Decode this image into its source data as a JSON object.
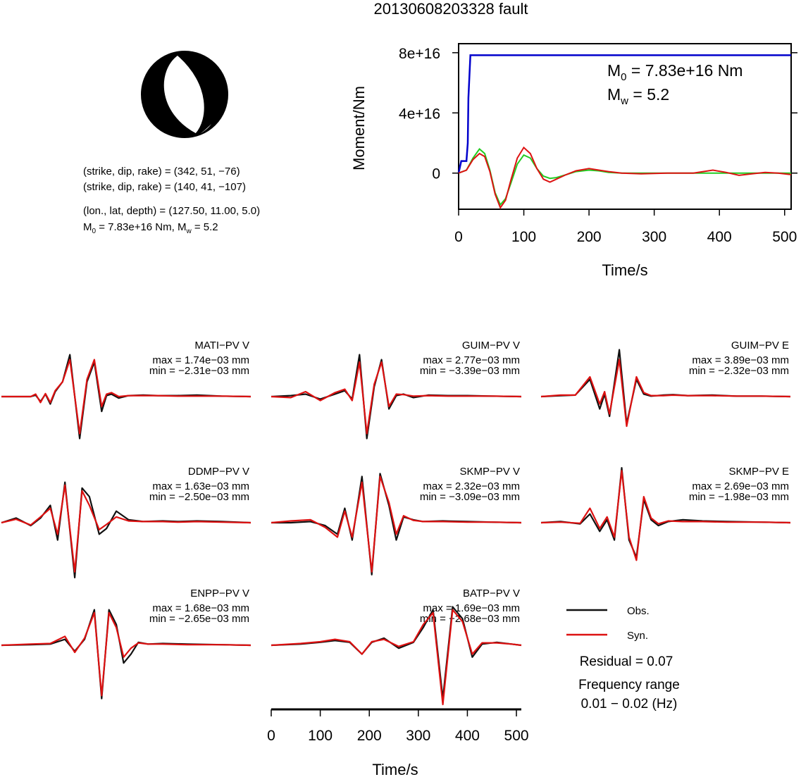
{
  "title": "20130608203328 fault",
  "mechanism": {
    "nodal_plane_1": "(strike, dip, rake) = (342, 51, −76)",
    "nodal_plane_2": "(strike, dip, rake) = (140, 41, −107)",
    "location": "(lon., lat, depth) = (127.50, 11.00, 5.0)",
    "moment_line": "M0 = 7.83e+16 Nm, Mw = 5.2",
    "m0_prefix": "M",
    "m0_sub": "0",
    "m0_rest": " = 7.83e+16 Nm, M",
    "mw_sub": "w",
    "mw_rest": " = 5.2"
  },
  "moment_panel": {
    "ylabel": "Moment/Nm",
    "xlabel": "Time/s",
    "m0_annotation": {
      "prefix": "M",
      "sub": "0",
      "rest": " = 7.83e+16 Nm"
    },
    "mw_annotation": {
      "prefix": "M",
      "sub": "w",
      "rest": " = 5.2"
    },
    "colors": {
      "moment": "#0000cc",
      "green": "#22cc22",
      "red": "#dd1111"
    }
  },
  "waveform_panel": {
    "xlabel": "Time/s",
    "colors": {
      "obs": "#111111",
      "syn": "#dd1111"
    }
  },
  "legend": {
    "obs_label": "Obs.",
    "syn_label": "Syn.",
    "residual": "Residual = 0.07",
    "freq_title": "Frequency range",
    "freq_value": "0.01 − 0.02 (Hz)"
  },
  "chart_data": [
    {
      "type": "line",
      "title": "",
      "xlabel": "Time/s",
      "ylabel": "Moment/Nm",
      "xlim": [
        0,
        510
      ],
      "ylim": [
        -2.4e+16,
        8.6e+16
      ],
      "xticks": [
        0,
        100,
        200,
        300,
        400,
        500
      ],
      "yticks": [
        0,
        4e+16,
        8e+16
      ],
      "ytick_labels": [
        "0",
        "4e+16",
        "8e+16"
      ],
      "series": [
        {
          "color": "#0000cc",
          "x": [
            0,
            4,
            8,
            12,
            14,
            15,
            18,
            510
          ],
          "y": [
            0,
            8000000000000000.0,
            8000000000000000.0,
            8000000000000000.0,
            2e+16,
            5e+16,
            7.83e+16,
            7.83e+16
          ]
        },
        {
          "color": "#22cc22",
          "x": [
            0,
            12,
            22,
            32,
            40,
            48,
            56,
            64,
            72,
            80,
            90,
            100,
            110,
            120,
            130,
            140,
            150,
            165,
            180,
            200,
            215,
            230,
            250,
            280,
            320,
            360,
            400,
            440,
            470,
            510
          ],
          "y": [
            0,
            2000000000000000.0,
            1e+16,
            1.6e+16,
            1.3e+16,
            2000000000000000.0,
            -1.3e+16,
            -2.1e+16,
            -1.7e+16,
            -7000000000000000.0,
            6000000000000000.0,
            1.2e+16,
            1e+16,
            3000000000000000.0,
            -2000000000000000.0,
            -3500000000000000.0,
            -3000000000000000.0,
            -1000000000000000.0,
            1000000000000000.0,
            2000000000000000.0,
            1500000000000000.0,
            500000000000000.0,
            0,
            0,
            0,
            0,
            0,
            0,
            0,
            0
          ]
        },
        {
          "color": "#dd1111",
          "x": [
            0,
            12,
            22,
            32,
            40,
            48,
            56,
            64,
            72,
            80,
            90,
            100,
            110,
            120,
            130,
            140,
            150,
            165,
            180,
            200,
            215,
            230,
            250,
            280,
            320,
            360,
            390,
            410,
            430,
            450,
            470,
            490,
            510
          ],
          "y": [
            0,
            2000000000000000.0,
            9000000000000000.0,
            1.3e+16,
            1.1e+16,
            1000000000000000.0,
            -1.4e+16,
            -2.3e+16,
            -1.8e+16,
            -5000000000000000.0,
            1e+16,
            1.7e+16,
            1.3e+16,
            3000000000000000.0,
            -4000000000000000.0,
            -6000000000000000.0,
            -4000000000000000.0,
            -1000000000000000.0,
            1500000000000000.0,
            3000000000000000.0,
            2000000000000000.0,
            1000000000000000.0,
            0,
            -500000000000000.0,
            0,
            0,
            2000000000000000.0,
            500000000000000.0,
            -1500000000000000.0,
            -500000000000000.0,
            500000000000000.0,
            0,
            -1000000000000000.0
          ]
        }
      ]
    },
    {
      "type": "line",
      "title": "",
      "xlabel": "Time/s",
      "xlim": [
        0,
        510
      ],
      "xticks": [
        0,
        100,
        200,
        300,
        400,
        500
      ],
      "ylim": [
        -1,
        1
      ],
      "panels": [
        {
          "station": "MATI−PV V",
          "max": "max = 1.74e−03 mm",
          "min": "min = −2.31e−03 mm",
          "obs": {
            "x": [
              0,
              60,
              70,
              80,
              90,
              100,
              110,
              125,
              140,
              160,
              175,
              190,
              205,
              215,
              225,
              240,
              260,
              290,
              320,
              360,
              400,
              450,
              510
            ],
            "y": [
              0,
              0,
              0.03,
              -0.1,
              0.05,
              -0.15,
              0.1,
              0.3,
              0.85,
              -0.85,
              0.3,
              0.7,
              -0.3,
              0.02,
              0.05,
              -0.03,
              0.02,
              0.03,
              0.02,
              0.02,
              0.03,
              0.01,
              0
            ]
          },
          "syn": {
            "x": [
              0,
              60,
              70,
              80,
              90,
              100,
              110,
              125,
              140,
              160,
              175,
              190,
              205,
              215,
              225,
              240,
              260,
              290,
              320,
              360,
              400,
              450,
              510
            ],
            "y": [
              0,
              0,
              0.05,
              -0.12,
              0.06,
              -0.12,
              0.12,
              0.3,
              0.75,
              -0.75,
              0.35,
              0.75,
              -0.2,
              0.05,
              0.08,
              0,
              0.02,
              0.02,
              0.02,
              0.01,
              0.01,
              0.01,
              0
            ]
          }
        },
        {
          "station": "GUIM−PV V",
          "max": "max = 2.77e−03 mm",
          "min": "min = −3.39e−03 mm",
          "obs": {
            "x": [
              0,
              40,
              70,
              100,
              130,
              150,
              165,
              180,
              195,
              210,
              225,
              240,
              255,
              270,
              290,
              320,
              360,
              400,
              450,
              510
            ],
            "y": [
              0,
              0.02,
              0.05,
              -0.05,
              0.05,
              0.12,
              -0.05,
              0.85,
              -0.85,
              0.2,
              0.75,
              -0.25,
              0.02,
              0.05,
              -0.02,
              0.03,
              0.02,
              0.02,
              0.01,
              0
            ]
          },
          "syn": {
            "x": [
              0,
              40,
              70,
              100,
              130,
              150,
              165,
              180,
              195,
              210,
              225,
              240,
              255,
              270,
              290,
              320,
              360,
              400,
              450,
              510
            ],
            "y": [
              0,
              -0.02,
              0.1,
              -0.08,
              0.08,
              0.15,
              -0.08,
              0.7,
              -0.75,
              0.25,
              0.7,
              -0.2,
              0.05,
              0.04,
              0.01,
              0.02,
              0.01,
              0.01,
              0.01,
              0
            ]
          }
        },
        {
          "station": "GUIM−PV E",
          "max": "max = 3.89e−03 mm",
          "min": "min = −2.32e−03 mm",
          "obs": {
            "x": [
              0,
              40,
              70,
              100,
              120,
              130,
              140,
              160,
              175,
              195,
              210,
              225,
              250,
              270,
              300,
              350,
              400,
              450,
              510
            ],
            "y": [
              0,
              0.02,
              0.03,
              0.35,
              -0.25,
              0.05,
              -0.4,
              0.95,
              -0.55,
              0.35,
              0.05,
              0.01,
              0.03,
              0.04,
              0.02,
              0.03,
              0.01,
              0.01,
              0
            ]
          },
          "syn": {
            "x": [
              0,
              40,
              70,
              100,
              120,
              130,
              140,
              160,
              175,
              195,
              210,
              225,
              250,
              270,
              300,
              350,
              400,
              450,
              510
            ],
            "y": [
              0,
              0.03,
              0.03,
              0.4,
              -0.15,
              0.1,
              -0.35,
              0.75,
              -0.6,
              0.4,
              0.08,
              0.02,
              0.02,
              0.03,
              0.02,
              0.02,
              0.01,
              0.01,
              0
            ]
          }
        },
        {
          "station": "DDMP−PV V",
          "max": "max = 1.63e−03 mm",
          "min": "min = −2.50e−03 mm",
          "obs": {
            "x": [
              0,
              30,
              60,
              80,
              100,
              115,
              130,
              150,
              165,
              180,
              200,
              215,
              235,
              260,
              290,
              330,
              360,
              400,
              450,
              510
            ],
            "y": [
              0,
              0.08,
              -0.05,
              0.08,
              0.3,
              -0.3,
              0.7,
              -0.95,
              0.6,
              0.45,
              -0.2,
              -0.1,
              0.2,
              0.05,
              0.02,
              0.03,
              0.02,
              0.03,
              0.02,
              0
            ]
          },
          "syn": {
            "x": [
              0,
              30,
              60,
              80,
              100,
              115,
              130,
              150,
              165,
              180,
              200,
              215,
              235,
              260,
              290,
              330,
              360,
              400,
              450,
              510
            ],
            "y": [
              0,
              0.06,
              -0.04,
              0.1,
              0.25,
              -0.2,
              0.65,
              -0.85,
              0.55,
              0.3,
              -0.12,
              -0.03,
              0.1,
              0.03,
              0.02,
              0.02,
              0.01,
              0.02,
              0.01,
              0
            ]
          }
        },
        {
          "station": "SKMP−PV V",
          "max": "max = 2.32e−03 mm",
          "min": "min = −3.09e−03 mm",
          "obs": {
            "x": [
              0,
              40,
              80,
              110,
              135,
              150,
              165,
              185,
              205,
              222,
              240,
              255,
              270,
              290,
              310,
              350,
              400,
              450,
              510
            ],
            "y": [
              0,
              0,
              0.02,
              -0.05,
              -0.2,
              0.25,
              -0.3,
              0.8,
              -0.9,
              0.85,
              0.3,
              -0.3,
              0.1,
              0.05,
              0.02,
              0.03,
              0.02,
              0.01,
              0
            ]
          },
          "syn": {
            "x": [
              0,
              40,
              80,
              110,
              135,
              150,
              165,
              185,
              205,
              222,
              240,
              255,
              270,
              290,
              310,
              350,
              400,
              450,
              510
            ],
            "y": [
              0,
              0.03,
              0.05,
              -0.08,
              -0.25,
              0.2,
              -0.25,
              0.7,
              -0.85,
              0.8,
              0.35,
              -0.2,
              0.12,
              0.04,
              0.02,
              0.02,
              0.01,
              0.01,
              0
            ]
          }
        },
        {
          "station": "SKMP−PV E",
          "max": "max = 2.69e−03 mm",
          "min": "min = −1.98e−03 mm",
          "obs": {
            "x": [
              0,
              40,
              80,
              100,
              120,
              135,
              150,
              165,
              180,
              195,
              210,
              225,
              240,
              260,
              290,
              330,
              380,
              450,
              510
            ],
            "y": [
              0,
              0.02,
              -0.02,
              0.15,
              -0.15,
              0.05,
              -0.3,
              0.95,
              -0.3,
              -0.6,
              0.4,
              0.05,
              -0.05,
              0.02,
              0.05,
              0.03,
              0.02,
              0.01,
              0
            ]
          },
          "syn": {
            "x": [
              0,
              40,
              80,
              100,
              120,
              135,
              150,
              165,
              180,
              195,
              210,
              225,
              240,
              260,
              290,
              330,
              380,
              450,
              510
            ],
            "y": [
              0,
              0.01,
              -0.01,
              0.25,
              -0.1,
              0.1,
              -0.25,
              0.9,
              -0.25,
              -0.65,
              0.45,
              0.08,
              -0.02,
              0.03,
              0.02,
              0.02,
              0.01,
              0.01,
              0
            ]
          }
        },
        {
          "station": "ENPP−PV V",
          "max": "max = 1.68e−03 mm",
          "min": "min = −2.65e−03 mm",
          "obs": {
            "x": [
              0,
              60,
              100,
              130,
              150,
              170,
              190,
              205,
              220,
              235,
              250,
              265,
              280,
              300,
              330,
              380,
              450,
              510
            ],
            "y": [
              0,
              0.01,
              0.02,
              0.1,
              -0.1,
              0.1,
              0.6,
              -0.9,
              0.6,
              0.35,
              -0.3,
              -0.15,
              0.05,
              0.02,
              0.03,
              0.02,
              0.01,
              0
            ]
          },
          "syn": {
            "x": [
              0,
              60,
              100,
              130,
              150,
              170,
              190,
              205,
              220,
              235,
              250,
              265,
              280,
              300,
              330,
              380,
              450,
              510
            ],
            "y": [
              0,
              0.02,
              0.03,
              0.15,
              -0.12,
              0.12,
              0.55,
              -0.85,
              0.55,
              0.3,
              -0.2,
              -0.05,
              0.04,
              0.02,
              0.02,
              0.01,
              0.01,
              0
            ]
          }
        },
        {
          "station": "BATP−PV V",
          "max": "max = 1.69e−03 mm",
          "min": "min = −2.68e−03 mm",
          "obs": {
            "x": [
              0,
              60,
              100,
              130,
              160,
              185,
              205,
              230,
              260,
              290,
              310,
              330,
              350,
              370,
              390,
              410,
              430,
              460,
              490,
              510
            ],
            "y": [
              0,
              0.02,
              0.05,
              0.08,
              0.05,
              -0.15,
              0.05,
              0.12,
              -0.05,
              0.05,
              0.3,
              0.6,
              -0.9,
              0.65,
              0.45,
              -0.2,
              0.02,
              0.05,
              0.02,
              0
            ]
          },
          "syn": {
            "x": [
              0,
              60,
              100,
              130,
              160,
              185,
              205,
              230,
              260,
              290,
              310,
              330,
              350,
              370,
              390,
              410,
              430,
              460,
              490,
              510
            ],
            "y": [
              0,
              0.03,
              0.06,
              0.1,
              0.06,
              -0.15,
              0.06,
              0.1,
              -0.02,
              0.06,
              0.35,
              0.55,
              -1.0,
              0.6,
              0.4,
              -0.15,
              0.04,
              0.04,
              0.02,
              0
            ]
          }
        }
      ]
    }
  ]
}
